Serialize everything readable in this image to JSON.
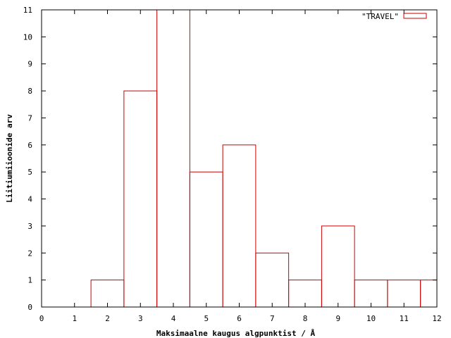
{
  "chart_data": {
    "type": "bar",
    "subtype": "histogram-steps",
    "xlabel": "Maksimaalne kaugus algpunktist / Å",
    "ylabel": "Liitiumiioonide arv",
    "xlim": [
      0,
      12
    ],
    "ylim": [
      0,
      11
    ],
    "x_ticks": [
      "0",
      "1",
      "2",
      "3",
      "4",
      "5",
      "6",
      "7",
      "8",
      "9",
      "10",
      "11",
      "12"
    ],
    "y_ticks": [
      "0",
      "1",
      "2",
      "3",
      "4",
      "5",
      "6",
      "7",
      "8",
      "9",
      "10",
      "11"
    ],
    "grid": false,
    "legend_position": "top-right",
    "series": [
      {
        "name": "\"TRAVEL\"",
        "color": "#cc0000",
        "x": [
          2,
          3,
          4,
          5,
          6,
          7,
          8,
          9,
          10,
          11,
          12
        ],
        "values": [
          1,
          8,
          11,
          5,
          6,
          2,
          1,
          3,
          1,
          1,
          1
        ]
      }
    ]
  }
}
